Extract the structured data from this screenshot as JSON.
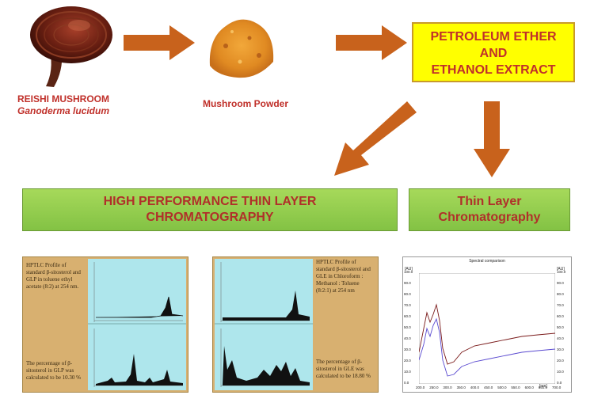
{
  "mushroom": {
    "name": "REISHI MUSHROOM",
    "species": "Ganoderma lucidum"
  },
  "powder": {
    "label": "Mushroom Powder"
  },
  "extract": {
    "line1": "PETROLEUM ETHER",
    "line2": "AND",
    "line3": "ETHANOL EXTRACT"
  },
  "hptlc_box": {
    "line1": "HIGH PERFORMANCE THIN LAYER",
    "line2": "CHROMATOGRAPHY"
  },
  "tlc_box": {
    "line1": "Thin Layer",
    "line2": "Chromatography"
  },
  "panel1": {
    "title": "HPTLC Profile of standard β-sitosterol and GLP in toluene ethyl acetate (8:2) at 254 nm.",
    "note": "The percentage of β-sitosterol in GLP was calculated to be 10.30 %"
  },
  "panel2": {
    "title": "HPTLC Profile of standard β-sitosterol and GLE in Chloroform : Methanol : Toluene (8:2:1) at 254 nm",
    "note": "The percentage of β-sitosterol in GLE was calculated to be 18.80 %"
  },
  "spectrum": {
    "title": "Spectral comparison",
    "y_unit_left": "[AU]",
    "y_unit_right": "[AU]",
    "x_unit": "[nm]",
    "y_ticks": [
      "100.0",
      "90.0",
      "80.0",
      "70.0",
      "60.0",
      "50.0",
      "40.0",
      "30.0",
      "20.0",
      "10.0",
      "0.0"
    ],
    "x_ticks": [
      "200.0",
      "250.0",
      "300.0",
      "350.0",
      "400.0",
      "450.0",
      "500.0",
      "550.0",
      "600.0",
      "650.0",
      "700.0"
    ]
  },
  "colors": {
    "arrow": "#c8621c",
    "text_red": "#c0302a",
    "yellow": "#ffff00",
    "green": "#8cc84b"
  }
}
